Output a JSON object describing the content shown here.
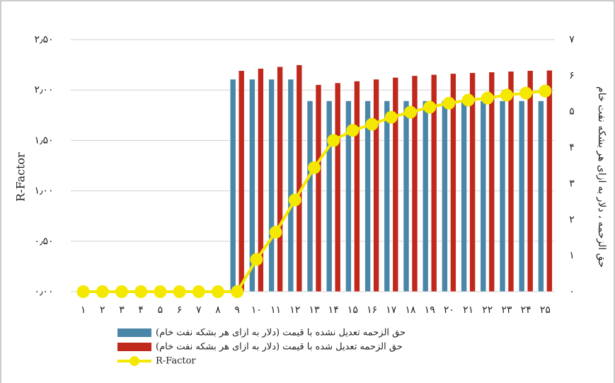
{
  "chart_data": {
    "type": "bar-line",
    "y_label": "R-Factor",
    "y2_label": "حق الزحمه ، دلار به ازای هر بشکه نفت خام",
    "categories": [
      "۱",
      "۲",
      "۳",
      "۴",
      "۵",
      "۶",
      "۷",
      "۸",
      "۹",
      "۱۰",
      "۱۱",
      "۱۲",
      "۱۳",
      "۱۴",
      "۱۵",
      "۱۶",
      "۱۷",
      "۱۸",
      "۱۹",
      "۲۰",
      "۲۱",
      "۲۲",
      "۲۳",
      "۲۴",
      "۲۵"
    ],
    "series": [
      {
        "name": "حق الزحمه تعدیل نشده با قیمت (دلار به ازای هر بشکه نفت خام)",
        "type": "bar",
        "axis": "y2",
        "color": "#4a86a8",
        "values": [
          0,
          0,
          0,
          0,
          0,
          0,
          0,
          0,
          5.9,
          5.9,
          5.9,
          5.9,
          5.3,
          5.3,
          5.3,
          5.3,
          5.3,
          5.3,
          5.3,
          5.3,
          5.3,
          5.3,
          5.3,
          5.3,
          5.3
        ]
      },
      {
        "name": "حق الزحمه تعدیل شده با قیمت (دلار به ازای هر بشکه نفت خام)",
        "type": "bar",
        "axis": "y2",
        "color": "#c0281c",
        "values": [
          0,
          0,
          0,
          0,
          0,
          0,
          0,
          0,
          6.14,
          6.2,
          6.25,
          6.3,
          5.75,
          5.8,
          5.85,
          5.9,
          5.95,
          6.0,
          6.03,
          6.06,
          6.08,
          6.1,
          6.12,
          6.14,
          6.15
        ]
      },
      {
        "name": "R-Factor",
        "type": "line",
        "axis": "y",
        "color": "#f5e800",
        "values": [
          0,
          0,
          0,
          0,
          0,
          0,
          0,
          0,
          0,
          0.32,
          0.59,
          0.91,
          1.23,
          1.5,
          1.6,
          1.66,
          1.73,
          1.78,
          1.83,
          1.87,
          1.9,
          1.92,
          1.95,
          1.97,
          1.99
        ]
      }
    ],
    "ylim": [
      0,
      2.5
    ],
    "yticks": [
      {
        "value": 0,
        "label": "۰٫۰۰"
      },
      {
        "value": 0.5,
        "label": "۰٫۵۰"
      },
      {
        "value": 1,
        "label": "۱٫۰۰"
      },
      {
        "value": 1.5,
        "label": "۱٫۵۰"
      },
      {
        "value": 2,
        "label": "۲٫۰۰"
      },
      {
        "value": 2.5,
        "label": "۲٫۵۰"
      }
    ],
    "y2lim": [
      0,
      7
    ],
    "y2ticks": [
      {
        "value": 0,
        "label": "۰"
      },
      {
        "value": 1,
        "label": "۱"
      },
      {
        "value": 2,
        "label": "۲"
      },
      {
        "value": 3,
        "label": "۳"
      },
      {
        "value": 4,
        "label": "۴"
      },
      {
        "value": 5,
        "label": "۵"
      },
      {
        "value": 6,
        "label": "۶"
      },
      {
        "value": 7,
        "label": "۷"
      }
    ],
    "grid": true
  }
}
